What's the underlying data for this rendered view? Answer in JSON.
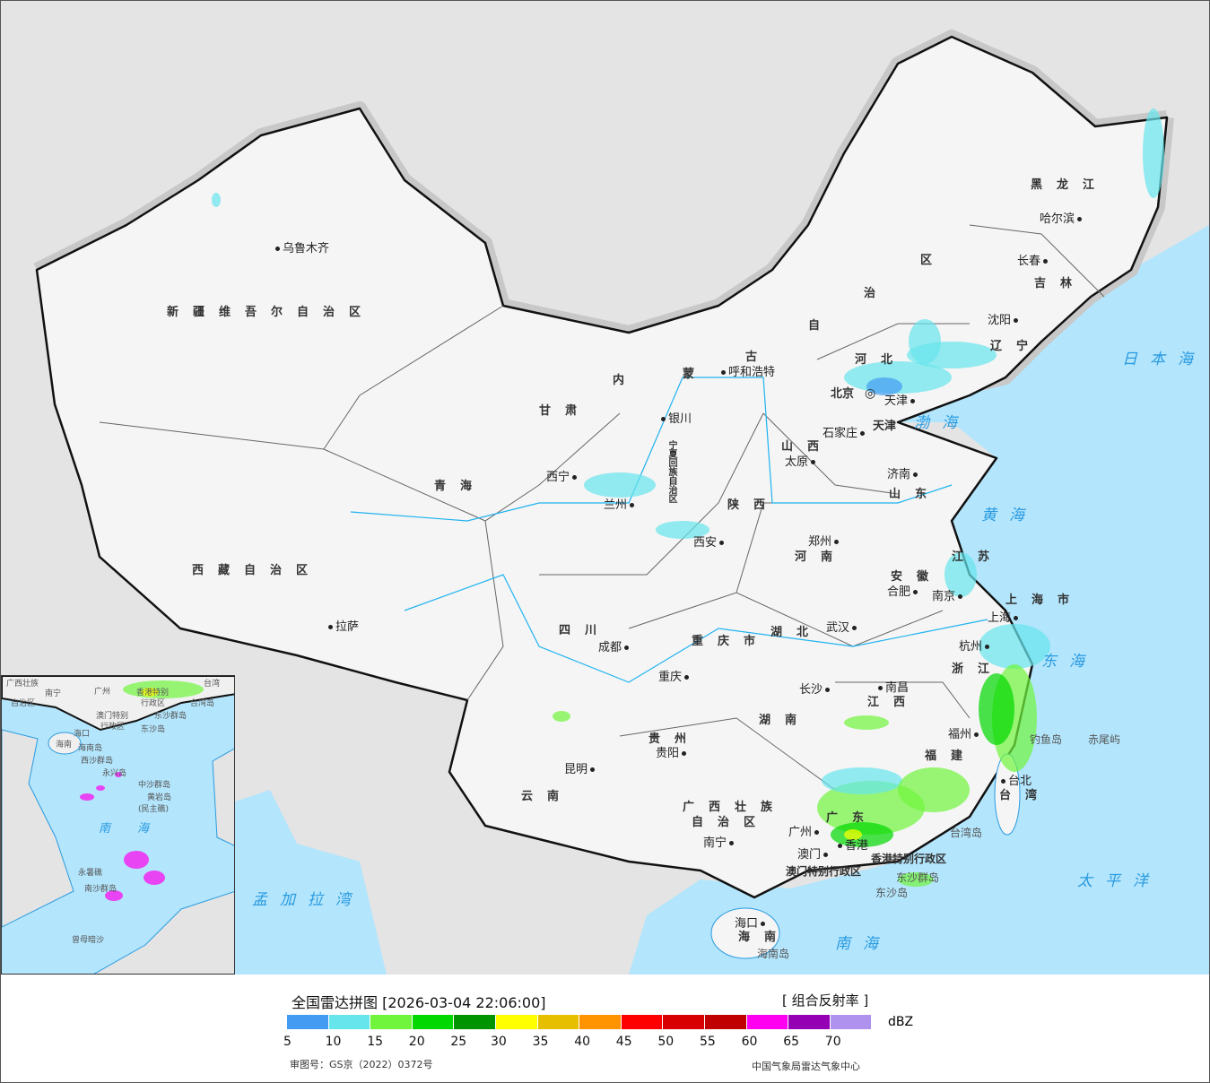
{
  "map": {
    "provinces": [
      "新疆维吾尔自治区",
      "西藏自治区",
      "青海",
      "甘肃",
      "内",
      "蒙",
      "古",
      "自",
      "治",
      "区",
      "黑龙江",
      "吉林",
      "辽宁",
      "河北",
      "山西",
      "陕西",
      "河南",
      "山东",
      "四川",
      "重庆市",
      "湖北",
      "湖南",
      "江西",
      "贵州",
      "云南",
      "广西壮族",
      "自治区",
      "广东",
      "福建",
      "浙江",
      "安徽",
      "江苏",
      "上海市",
      "台湾",
      "海南",
      "宁夏回族自治区",
      "北京",
      "天津",
      "香港特别行政区",
      "澳门特别行政区"
    ],
    "cities": [
      "乌鲁木齐",
      "拉萨",
      "西宁",
      "兰州",
      "银川",
      "呼和浩特",
      "天津",
      "石家庄",
      "太原",
      "济南",
      "郑州",
      "西安",
      "合肥",
      "南京",
      "上海",
      "杭州",
      "武汉",
      "长沙",
      "南昌",
      "福州",
      "台北",
      "成都",
      "重庆",
      "贵阳",
      "昆明",
      "南宁",
      "广州",
      "澳门",
      "香港",
      "海口",
      "沈阳",
      "长春",
      "哈尔滨"
    ],
    "seas": [
      "渤海",
      "黄海",
      "东海",
      "日本海",
      "太平洋",
      "南海",
      "孟加拉湾"
    ],
    "islands": [
      "钓鱼岛",
      "赤尾屿",
      "台湾岛",
      "东沙群岛",
      "东沙岛",
      "海南岛"
    ],
    "capital_icon": "star-circle-icon"
  },
  "inset": {
    "labels": [
      "广西壮族",
      "自治区",
      "南宁",
      "广州",
      "香港特别",
      "行政区",
      "澳门特别",
      "行政区",
      "东沙群岛",
      "东沙岛",
      "台湾",
      "台湾岛",
      "海口",
      "海南",
      "海南岛",
      "西沙群岛",
      "永兴岛",
      "中沙群岛",
      "黄岩岛",
      "(民主礁)",
      "南海",
      "永暑礁",
      "南沙群岛",
      "曾母暗沙"
    ]
  },
  "legend": {
    "title": "全国雷达拼图 [2026-03-04 22:06:00]",
    "type": "[ 组合反射率 ]",
    "unit": "dBZ",
    "ticks": [
      "5",
      "10",
      "15",
      "20",
      "25",
      "30",
      "35",
      "40",
      "45",
      "50",
      "55",
      "60",
      "65",
      "70"
    ],
    "colors": [
      "#449cf2",
      "#66e6ec",
      "#70f53c",
      "#00d800",
      "#009400",
      "#ffff00",
      "#e6c000",
      "#ff9400",
      "#ff0000",
      "#d80000",
      "#c00000",
      "#ff00f0",
      "#9600b4",
      "#ae92ee"
    ]
  },
  "footer": {
    "approval": "审图号：GS京（2022）0372号",
    "org": "中国气象局雷达气象中心"
  }
}
